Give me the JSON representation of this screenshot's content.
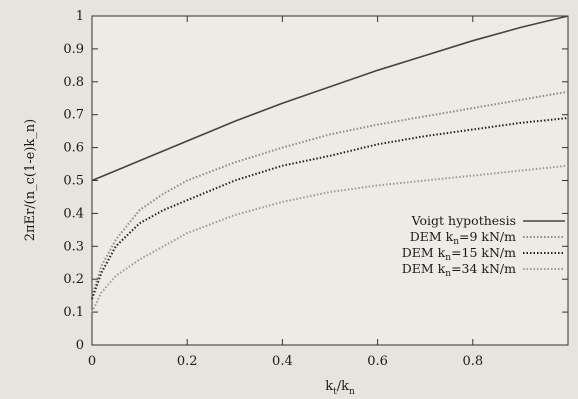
{
  "chart_data": {
    "type": "line",
    "xlabel_main": "k",
    "xlabel_sub1": "t",
    "xlabel_mid": "/k",
    "xlabel_sub2": "n",
    "ylabel": "2πEr/(n_c(1-e)k_n)",
    "xlim": [
      0,
      1
    ],
    "ylim": [
      0,
      1
    ],
    "xticks": [
      "0",
      "0.2",
      "0.4",
      "0.6",
      "0.8"
    ],
    "yticks": [
      "0",
      "0.1",
      "0.2",
      "0.3",
      "0.4",
      "0.5",
      "0.6",
      "0.7",
      "0.8",
      "0.9",
      "1"
    ],
    "grid": false,
    "legend_position": "bottom-right",
    "series": [
      {
        "name": "Voigt hypothesis",
        "legend_label": {
          "pre": "Voigt hypothesis",
          "sub": "",
          "post": ""
        },
        "style": "solid",
        "color": "#444444",
        "x": [
          0,
          0.1,
          0.2,
          0.3,
          0.4,
          0.5,
          0.6,
          0.7,
          0.8,
          0.9,
          1.0
        ],
        "y": [
          0.5,
          0.56,
          0.62,
          0.68,
          0.735,
          0.785,
          0.835,
          0.88,
          0.925,
          0.965,
          1.0
        ]
      },
      {
        "name": "DEM kn=9 kN/m",
        "legend_label": {
          "pre": "DEM  k",
          "sub": "n",
          "post": "=9 kN/m"
        },
        "style": "dotted",
        "color": "#8a8a8a",
        "x": [
          0,
          0.02,
          0.05,
          0.1,
          0.15,
          0.2,
          0.3,
          0.4,
          0.5,
          0.6,
          0.7,
          0.8,
          0.9,
          1.0
        ],
        "y": [
          0.15,
          0.24,
          0.32,
          0.41,
          0.46,
          0.5,
          0.555,
          0.6,
          0.64,
          0.67,
          0.695,
          0.72,
          0.745,
          0.77
        ]
      },
      {
        "name": "DEM kn=15 kN/m",
        "legend_label": {
          "pre": "DEM  k",
          "sub": "n",
          "post": "=15 kN/m"
        },
        "style": "dotted",
        "color": "#222222",
        "x": [
          0,
          0.02,
          0.05,
          0.1,
          0.15,
          0.2,
          0.3,
          0.4,
          0.5,
          0.6,
          0.7,
          0.8,
          0.9,
          1.0
        ],
        "y": [
          0.14,
          0.22,
          0.3,
          0.37,
          0.41,
          0.44,
          0.5,
          0.545,
          0.575,
          0.61,
          0.635,
          0.655,
          0.675,
          0.69
        ]
      },
      {
        "name": "DEM kn=34 kN/m",
        "legend_label": {
          "pre": "DEM  k",
          "sub": "n",
          "post": "=34 kN/m"
        },
        "style": "dotted",
        "color": "#9a9a9a",
        "x": [
          0,
          0.02,
          0.05,
          0.1,
          0.15,
          0.2,
          0.3,
          0.4,
          0.5,
          0.6,
          0.7,
          0.8,
          0.9,
          1.0
        ],
        "y": [
          0.1,
          0.16,
          0.21,
          0.26,
          0.3,
          0.34,
          0.395,
          0.435,
          0.465,
          0.485,
          0.5,
          0.515,
          0.53,
          0.545
        ]
      }
    ]
  }
}
